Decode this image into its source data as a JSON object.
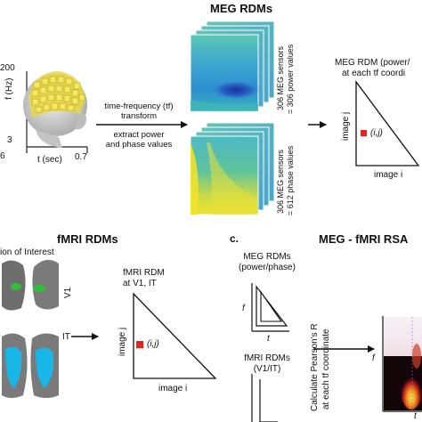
{
  "panel_a": {
    "title": "MEG RDMs",
    "axis_y_label": "f (Hz)",
    "y_tick_top": "200",
    "y_tick_bottom": "3",
    "axis_x_label": "t (sec)",
    "x_tick_left": "6",
    "x_tick_right": "0.7",
    "tf_line1": "time-frequency (tf)",
    "tf_line2": "transform",
    "extract_line1": "extract power",
    "extract_line2": "and phase values",
    "power_side_line1": "306 MEG sensors",
    "power_side_line2": "= 306 power values",
    "phase_side_line1": "306 MEG sensors",
    "phase_side_line2": "= 612 phase values",
    "rdm_title_line1": "MEG RDM (power/",
    "rdm_title_line2": "at each tf coordi",
    "rdm_ylabel": "image j",
    "rdm_xlabel": "image i",
    "rdm_cell": "(i,j)"
  },
  "panel_b": {
    "title": "fMRI RDMs",
    "roi_label": "ion of Interest",
    "v1_label": "V1",
    "it_label": "IT",
    "rdm_title_line1": "fMRI RDM",
    "rdm_title_line2": "at V1, IT",
    "rdm_ylabel": "image j",
    "rdm_xlabel": "image i",
    "rdm_cell": "(i,j)"
  },
  "panel_c": {
    "letter": "c.",
    "title": "MEG - fMRI RSA",
    "meg_line1": "MEG RDMs",
    "meg_line2": "(power/phase)",
    "f_label": "f",
    "t_label": "t",
    "fmri_line1": "fMRI  RDMs",
    "fmri_line2": "(V1/IT)",
    "calc_line1": "Calculate Pearson's R",
    "calc_line2": "at each tf coordinate",
    "result_f": "f",
    "result_t": "t"
  },
  "colors": {
    "cell_marker": "#e8231a",
    "cortex_v1": "#2fbf3a",
    "cortex_it": "#19b6e8",
    "heatmap_low": "#1d4fb5",
    "heatmap_high": "#f2e52a"
  }
}
